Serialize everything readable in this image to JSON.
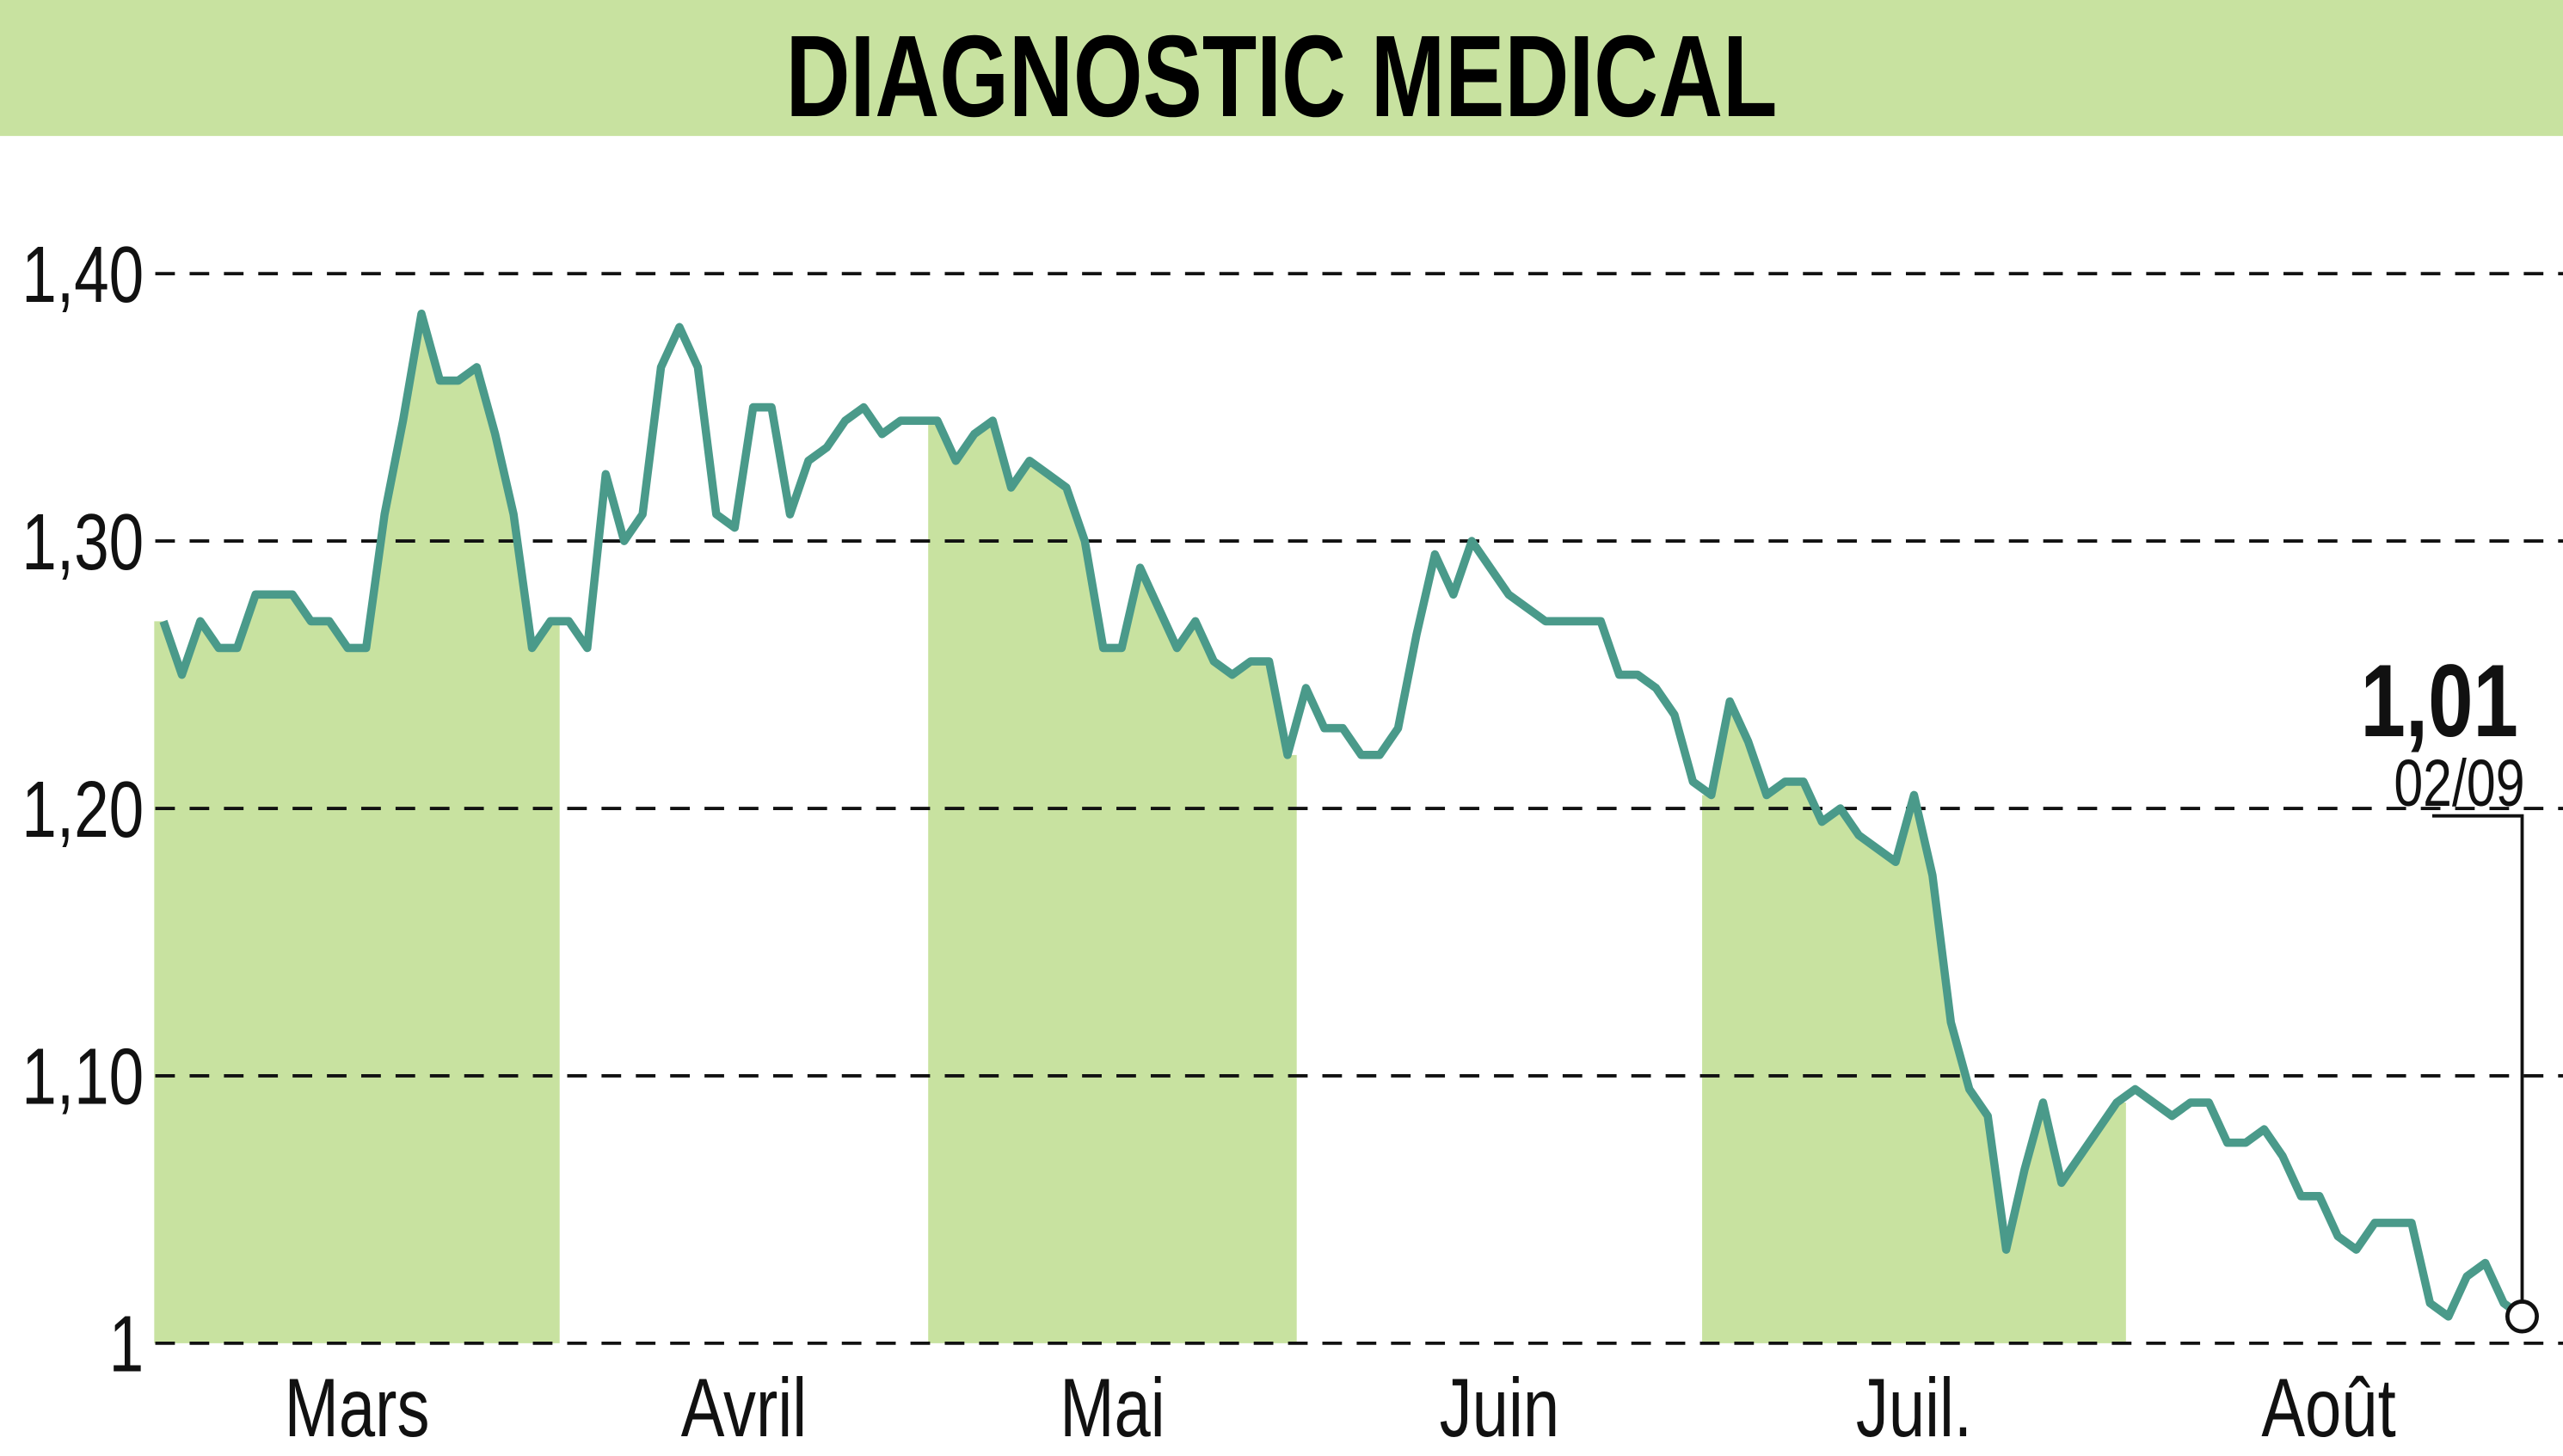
{
  "chart_data": {
    "type": "line",
    "title": "DIAGNOSTIC MEDICAL",
    "categories": [
      "Mars",
      "Mars",
      "Mars",
      "Mars",
      "Mars",
      "Mars",
      "Mars",
      "Mars",
      "Mars",
      "Mars",
      "Mars",
      "Mars",
      "Mars",
      "Mars",
      "Mars",
      "Mars",
      "Mars",
      "Mars",
      "Mars",
      "Mars",
      "Mars",
      "Mars",
      "Avril",
      "Avril",
      "Avril",
      "Avril",
      "Avril",
      "Avril",
      "Avril",
      "Avril",
      "Avril",
      "Avril",
      "Avril",
      "Avril",
      "Avril",
      "Avril",
      "Avril",
      "Avril",
      "Avril",
      "Avril",
      "Avril",
      "Avril",
      "Mai",
      "Mai",
      "Mai",
      "Mai",
      "Mai",
      "Mai",
      "Mai",
      "Mai",
      "Mai",
      "Mai",
      "Mai",
      "Mai",
      "Mai",
      "Mai",
      "Mai",
      "Mai",
      "Mai",
      "Mai",
      "Mai",
      "Mai",
      "Juin",
      "Juin",
      "Juin",
      "Juin",
      "Juin",
      "Juin",
      "Juin",
      "Juin",
      "Juin",
      "Juin",
      "Juin",
      "Juin",
      "Juin",
      "Juin",
      "Juin",
      "Juin",
      "Juin",
      "Juin",
      "Juin",
      "Juin",
      "Juin",
      "Juin",
      "Juil.",
      "Juil.",
      "Juil.",
      "Juil.",
      "Juil.",
      "Juil.",
      "Juil.",
      "Juil.",
      "Juil.",
      "Juil.",
      "Juil.",
      "Juil.",
      "Juil.",
      "Juil.",
      "Juil.",
      "Juil.",
      "Juil.",
      "Juil.",
      "Juil.",
      "Juil.",
      "Juil.",
      "Juil.",
      "Juil.",
      "Août",
      "Août",
      "Août",
      "Août",
      "Août",
      "Août",
      "Août",
      "Août",
      "Août",
      "Août",
      "Août",
      "Août",
      "Août",
      "Août",
      "Août",
      "Août",
      "Août",
      "Août",
      "Août",
      "Août",
      "Août",
      "Août"
    ],
    "values": [
      1.27,
      1.25,
      1.27,
      1.26,
      1.26,
      1.28,
      1.28,
      1.28,
      1.27,
      1.27,
      1.26,
      1.26,
      1.31,
      1.345,
      1.385,
      1.36,
      1.36,
      1.365,
      1.34,
      1.31,
      1.26,
      1.27,
      1.27,
      1.26,
      1.325,
      1.3,
      1.31,
      1.365,
      1.38,
      1.365,
      1.31,
      1.305,
      1.35,
      1.35,
      1.31,
      1.33,
      1.335,
      1.345,
      1.35,
      1.34,
      1.345,
      1.345,
      1.345,
      1.33,
      1.34,
      1.345,
      1.32,
      1.33,
      1.325,
      1.32,
      1.3,
      1.26,
      1.26,
      1.29,
      1.275,
      1.26,
      1.27,
      1.255,
      1.25,
      1.255,
      1.255,
      1.22,
      1.245,
      1.23,
      1.23,
      1.22,
      1.22,
      1.23,
      1.265,
      1.295,
      1.28,
      1.3,
      1.29,
      1.28,
      1.275,
      1.27,
      1.27,
      1.27,
      1.27,
      1.25,
      1.25,
      1.245,
      1.235,
      1.21,
      1.205,
      1.24,
      1.225,
      1.205,
      1.21,
      1.21,
      1.195,
      1.2,
      1.19,
      1.185,
      1.18,
      1.205,
      1.175,
      1.12,
      1.095,
      1.085,
      1.035,
      1.065,
      1.09,
      1.06,
      1.07,
      1.08,
      1.09,
      1.095,
      1.09,
      1.085,
      1.09,
      1.09,
      1.075,
      1.075,
      1.08,
      1.07,
      1.055,
      1.055,
      1.04,
      1.035,
      1.045,
      1.045,
      1.045,
      1.015,
      1.01,
      1.025,
      1.03,
      1.015,
      1.01
    ],
    "color": "#4a9a8a",
    "shade_color": "#c8e2a0",
    "last_label": "1,01",
    "last_date": "02/09",
    "ylim": [
      1,
      1.4
    ],
    "yticks": [
      1,
      {
        "value": 1.1,
        "label": "1,10"
      },
      {
        "value": 1.2,
        "label": "1,20"
      },
      {
        "value": 1.3,
        "label": "1,30"
      },
      {
        "value": 1.4,
        "label": "1,40"
      }
    ],
    "grid": true
  }
}
